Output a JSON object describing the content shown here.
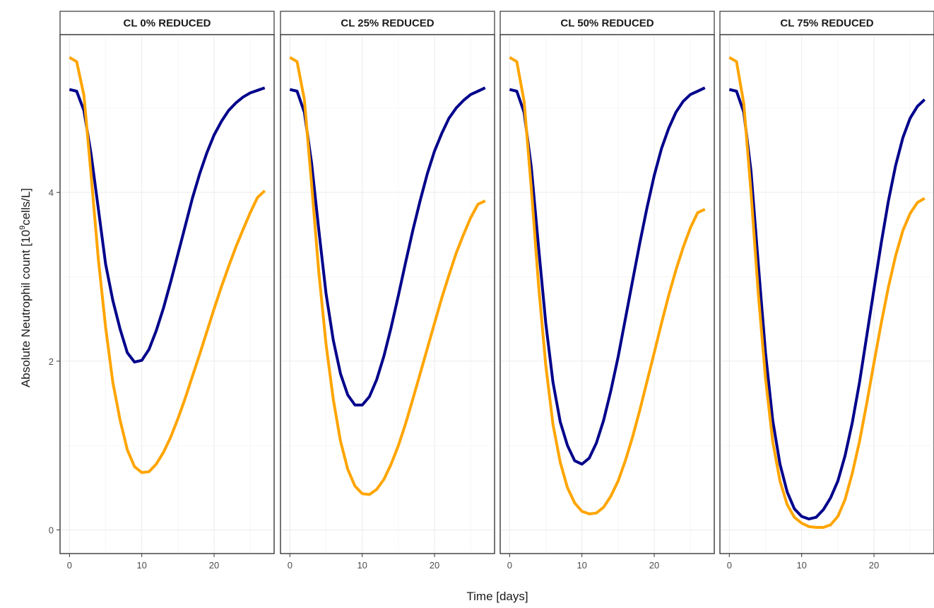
{
  "chart_data": {
    "type": "line",
    "xlabel": "Time [days]",
    "ylabel_prefix": "Absolute Neutrophil count [10",
    "ylabel_sup": "9",
    "ylabel_suffix": "cells/L]",
    "xlim": [
      -1.3,
      28.3
    ],
    "ylim": [
      -0.28,
      5.87
    ],
    "xticks": [
      0,
      10,
      20
    ],
    "yticks": [
      0,
      2,
      4
    ],
    "grid": true,
    "series_colors": [
      "#00008B",
      "#FFA500"
    ],
    "panels": [
      {
        "title": "CL 0% REDUCED",
        "series": [
          {
            "color": "#00008B",
            "x": [
              0,
              1,
              2,
              3,
              4,
              5,
              6,
              7,
              8,
              9,
              10,
              11,
              12,
              13,
              14,
              15,
              16,
              17,
              18,
              19,
              20,
              21,
              22,
              23,
              24,
              25,
              26,
              27
            ],
            "values": [
              5.22,
              5.2,
              4.97,
              4.45,
              3.8,
              3.15,
              2.72,
              2.38,
              2.1,
              1.99,
              2.01,
              2.14,
              2.36,
              2.63,
              2.94,
              3.27,
              3.6,
              3.93,
              4.22,
              4.47,
              4.68,
              4.84,
              4.97,
              5.06,
              5.13,
              5.18,
              5.21,
              5.24
            ]
          },
          {
            "color": "#FFA500",
            "x": [
              0,
              1,
              2,
              3,
              4,
              5,
              6,
              7,
              8,
              9,
              10,
              11,
              12,
              13,
              14,
              15,
              16,
              17,
              18,
              19,
              20,
              21,
              22,
              23,
              24,
              25,
              26,
              27
            ],
            "values": [
              5.6,
              5.55,
              5.15,
              4.2,
              3.2,
              2.4,
              1.75,
              1.3,
              0.95,
              0.75,
              0.68,
              0.69,
              0.78,
              0.92,
              1.1,
              1.32,
              1.56,
              1.82,
              2.08,
              2.35,
              2.62,
              2.88,
              3.12,
              3.35,
              3.56,
              3.76,
              3.94,
              4.02
            ]
          }
        ]
      },
      {
        "title": "CL 25% REDUCED",
        "series": [
          {
            "color": "#00008B",
            "x": [
              0,
              1,
              2,
              3,
              4,
              5,
              6,
              7,
              8,
              9,
              10,
              11,
              12,
              13,
              14,
              15,
              16,
              17,
              18,
              19,
              20,
              21,
              22,
              23,
              24,
              25,
              26,
              27
            ],
            "values": [
              5.22,
              5.2,
              4.95,
              4.35,
              3.55,
              2.8,
              2.25,
              1.85,
              1.6,
              1.48,
              1.48,
              1.58,
              1.78,
              2.06,
              2.4,
              2.78,
              3.17,
              3.55,
              3.9,
              4.22,
              4.49,
              4.7,
              4.88,
              5.0,
              5.09,
              5.16,
              5.2,
              5.24
            ]
          },
          {
            "color": "#FFA500",
            "x": [
              0,
              1,
              2,
              3,
              4,
              5,
              6,
              7,
              8,
              9,
              10,
              11,
              12,
              13,
              14,
              15,
              16,
              17,
              18,
              19,
              20,
              21,
              22,
              23,
              24,
              25,
              26,
              27
            ],
            "values": [
              5.6,
              5.55,
              5.1,
              4.1,
              3.05,
              2.2,
              1.55,
              1.05,
              0.72,
              0.52,
              0.43,
              0.42,
              0.48,
              0.6,
              0.78,
              1.0,
              1.26,
              1.55,
              1.85,
              2.15,
              2.45,
              2.75,
              3.02,
              3.28,
              3.5,
              3.7,
              3.86,
              3.9
            ]
          }
        ]
      },
      {
        "title": "CL 50% REDUCED",
        "series": [
          {
            "color": "#00008B",
            "x": [
              0,
              1,
              2,
              3,
              4,
              5,
              6,
              7,
              8,
              9,
              10,
              11,
              12,
              13,
              14,
              15,
              16,
              17,
              18,
              19,
              20,
              21,
              22,
              23,
              24,
              25,
              26,
              27
            ],
            "values": [
              5.22,
              5.2,
              4.95,
              4.3,
              3.35,
              2.45,
              1.75,
              1.28,
              1.0,
              0.82,
              0.78,
              0.85,
              1.03,
              1.3,
              1.65,
              2.05,
              2.5,
              2.95,
              3.4,
              3.82,
              4.2,
              4.52,
              4.76,
              4.95,
              5.08,
              5.16,
              5.2,
              5.24
            ]
          },
          {
            "color": "#FFA500",
            "x": [
              0,
              1,
              2,
              3,
              4,
              5,
              6,
              7,
              8,
              9,
              10,
              11,
              12,
              13,
              14,
              15,
              16,
              17,
              18,
              19,
              20,
              21,
              22,
              23,
              24,
              25,
              26,
              27
            ],
            "values": [
              5.6,
              5.55,
              5.08,
              4.05,
              2.9,
              1.95,
              1.25,
              0.8,
              0.5,
              0.32,
              0.22,
              0.19,
              0.2,
              0.27,
              0.4,
              0.58,
              0.82,
              1.1,
              1.42,
              1.76,
              2.1,
              2.45,
              2.78,
              3.08,
              3.35,
              3.58,
              3.76,
              3.8
            ]
          }
        ]
      },
      {
        "title": "CL 75% REDUCED",
        "series": [
          {
            "color": "#00008B",
            "x": [
              0,
              1,
              2,
              3,
              4,
              5,
              6,
              7,
              8,
              9,
              10,
              11,
              12,
              13,
              14,
              15,
              16,
              17,
              18,
              19,
              20,
              21,
              22,
              23,
              24,
              25,
              26,
              27
            ],
            "values": [
              5.22,
              5.2,
              4.95,
              4.25,
              3.15,
              2.1,
              1.3,
              0.78,
              0.45,
              0.25,
              0.16,
              0.13,
              0.15,
              0.24,
              0.38,
              0.58,
              0.88,
              1.27,
              1.75,
              2.3,
              2.85,
              3.4,
              3.9,
              4.32,
              4.65,
              4.88,
              5.02,
              5.1
            ]
          },
          {
            "color": "#FFA500",
            "x": [
              0,
              1,
              2,
              3,
              4,
              5,
              6,
              7,
              8,
              9,
              10,
              11,
              12,
              13,
              14,
              15,
              16,
              17,
              18,
              19,
              20,
              21,
              22,
              23,
              24,
              25,
              26,
              27
            ],
            "values": [
              5.6,
              5.55,
              5.05,
              4.0,
              2.8,
              1.8,
              1.05,
              0.58,
              0.3,
              0.15,
              0.08,
              0.04,
              0.03,
              0.03,
              0.06,
              0.16,
              0.36,
              0.67,
              1.05,
              1.5,
              1.98,
              2.45,
              2.88,
              3.25,
              3.55,
              3.75,
              3.88,
              3.93
            ]
          }
        ]
      }
    ]
  }
}
